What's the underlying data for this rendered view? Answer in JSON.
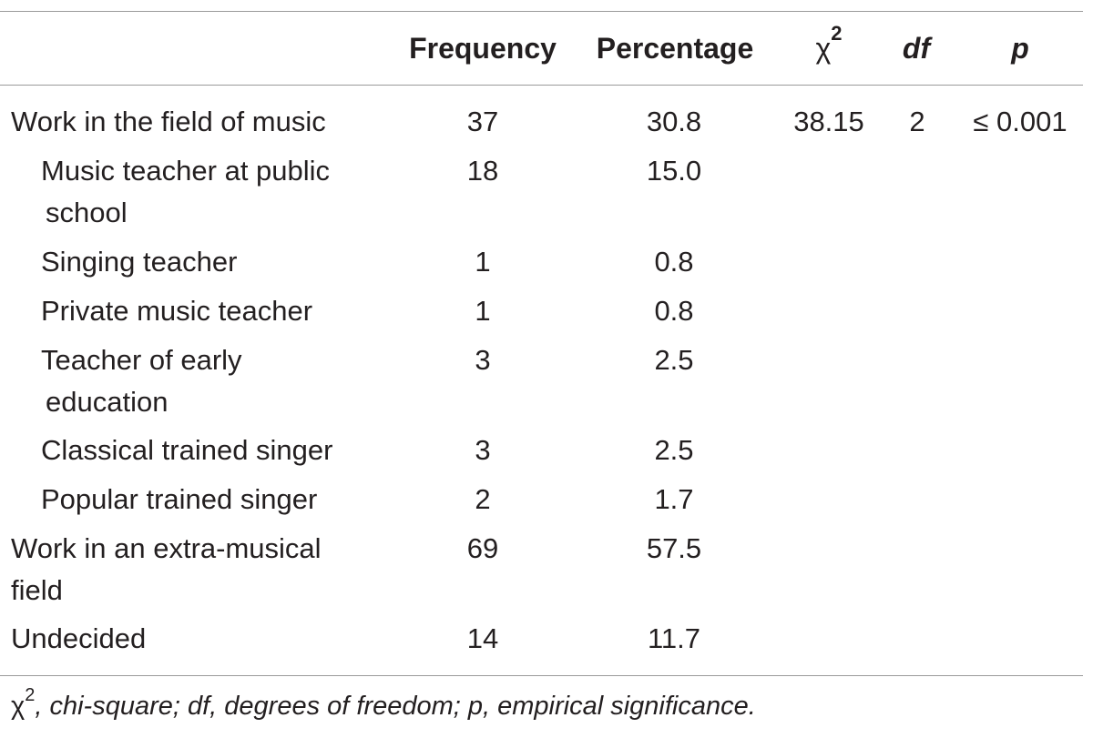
{
  "table": {
    "headers": {
      "frequency": "Frequency",
      "percentage": "Percentage",
      "chi_symbol": "χ",
      "chi_sup": "2",
      "df": "df",
      "p": "p"
    },
    "rows": [
      {
        "label_lines": [
          "Work in the field of music"
        ],
        "frequency": "37",
        "percentage": "30.8",
        "chi": "38.15",
        "df": "2",
        "p": "≤ 0.001"
      },
      {
        "label_lines": [
          "Music teacher at public",
          "school"
        ],
        "frequency": "18",
        "percentage": "15.0"
      },
      {
        "label_lines": [
          "Singing teacher"
        ],
        "frequency": "1",
        "percentage": "0.8"
      },
      {
        "label_lines": [
          "Private music teacher"
        ],
        "frequency": "1",
        "percentage": "0.8"
      },
      {
        "label_lines": [
          "Teacher of early",
          "education"
        ],
        "frequency": "3",
        "percentage": "2.5"
      },
      {
        "label_lines": [
          "Classical trained singer"
        ],
        "frequency": "3",
        "percentage": "2.5"
      },
      {
        "label_lines": [
          "Popular trained singer"
        ],
        "frequency": "2",
        "percentage": "1.7"
      },
      {
        "label_lines": [
          "Work in an extra-musical",
          "field"
        ],
        "frequency": "69",
        "percentage": "57.5"
      },
      {
        "label_lines": [
          "Undecided"
        ],
        "frequency": "14",
        "percentage": "11.7"
      }
    ],
    "footnote": {
      "chi_symbol": "χ",
      "chi_sup": "2",
      "text": ", chi-square; df, degrees of freedom; p, empirical significance."
    }
  }
}
